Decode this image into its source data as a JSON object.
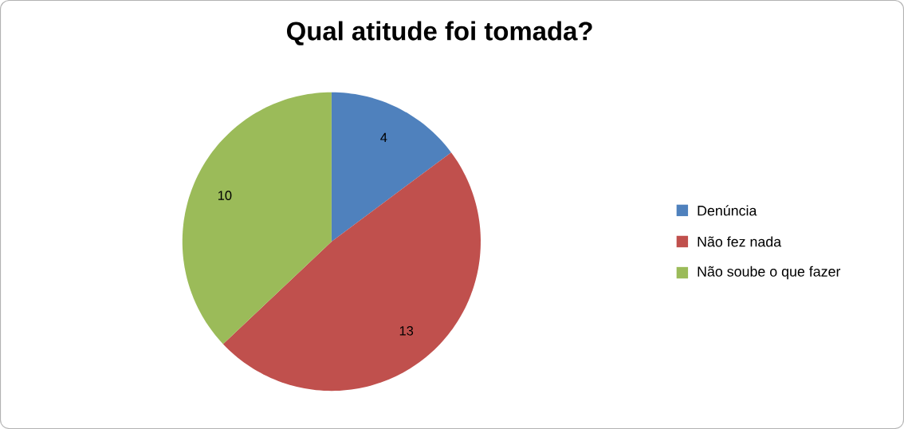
{
  "chart_data": {
    "type": "pie",
    "title": "Qual atitude foi tomada?",
    "categories": [
      "Denúncia",
      "Não fez nada",
      "Não soube o que fazer"
    ],
    "values": [
      4,
      13,
      10
    ],
    "colors": [
      "#4f81bd",
      "#c0504d",
      "#9bbb59"
    ],
    "data_labels": true,
    "legend": "right"
  }
}
